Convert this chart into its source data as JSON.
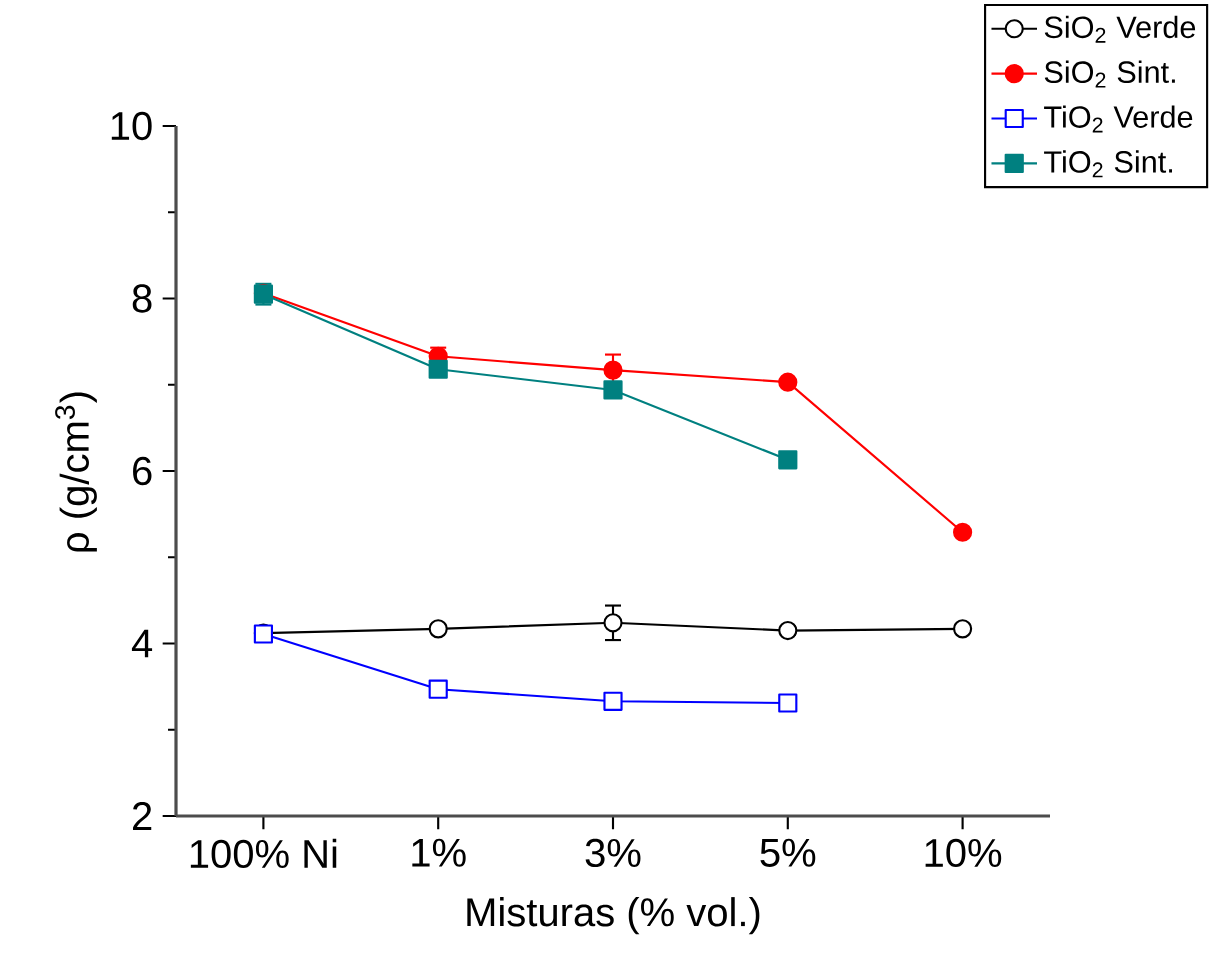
{
  "chart_data": {
    "type": "line",
    "xlabel": "Misturas (% vol.)",
    "ylabel": "ρ (g/cm$^{3}$)",
    "categories": [
      "100% Ni",
      "1%",
      "3%",
      "5%",
      "10%"
    ],
    "ylim": [
      2,
      10
    ],
    "yticks": [
      2,
      4,
      6,
      8,
      10
    ],
    "grid": false,
    "legend": "top right",
    "series": [
      {
        "name": "SiO$_{2}$ Verde",
        "color": "#000000",
        "marker": "circle-open",
        "values": [
          4.12,
          4.17,
          4.24,
          4.15,
          4.17
        ],
        "errors": [
          null,
          0.05,
          0.2,
          0.05,
          0.05
        ]
      },
      {
        "name": "SiO$_{2}$ Sint.",
        "color": "#ff0000",
        "marker": "circle",
        "values": [
          8.06,
          7.33,
          7.17,
          7.03,
          5.29
        ],
        "errors": [
          null,
          0.1,
          0.18,
          null,
          null
        ]
      },
      {
        "name": "TiO$_{2}$ Verde",
        "color": "#0000ff",
        "marker": "square-open",
        "values": [
          4.11,
          3.47,
          3.33,
          3.31,
          null
        ],
        "errors": [
          0.05,
          null,
          0.05,
          null,
          null
        ]
      },
      {
        "name": "TiO$_{2}$ Sint.",
        "color": "#008080",
        "marker": "square",
        "values": [
          8.05,
          7.18,
          6.94,
          6.13,
          null
        ],
        "errors": [
          0.12,
          null,
          null,
          null,
          null
        ]
      }
    ]
  }
}
